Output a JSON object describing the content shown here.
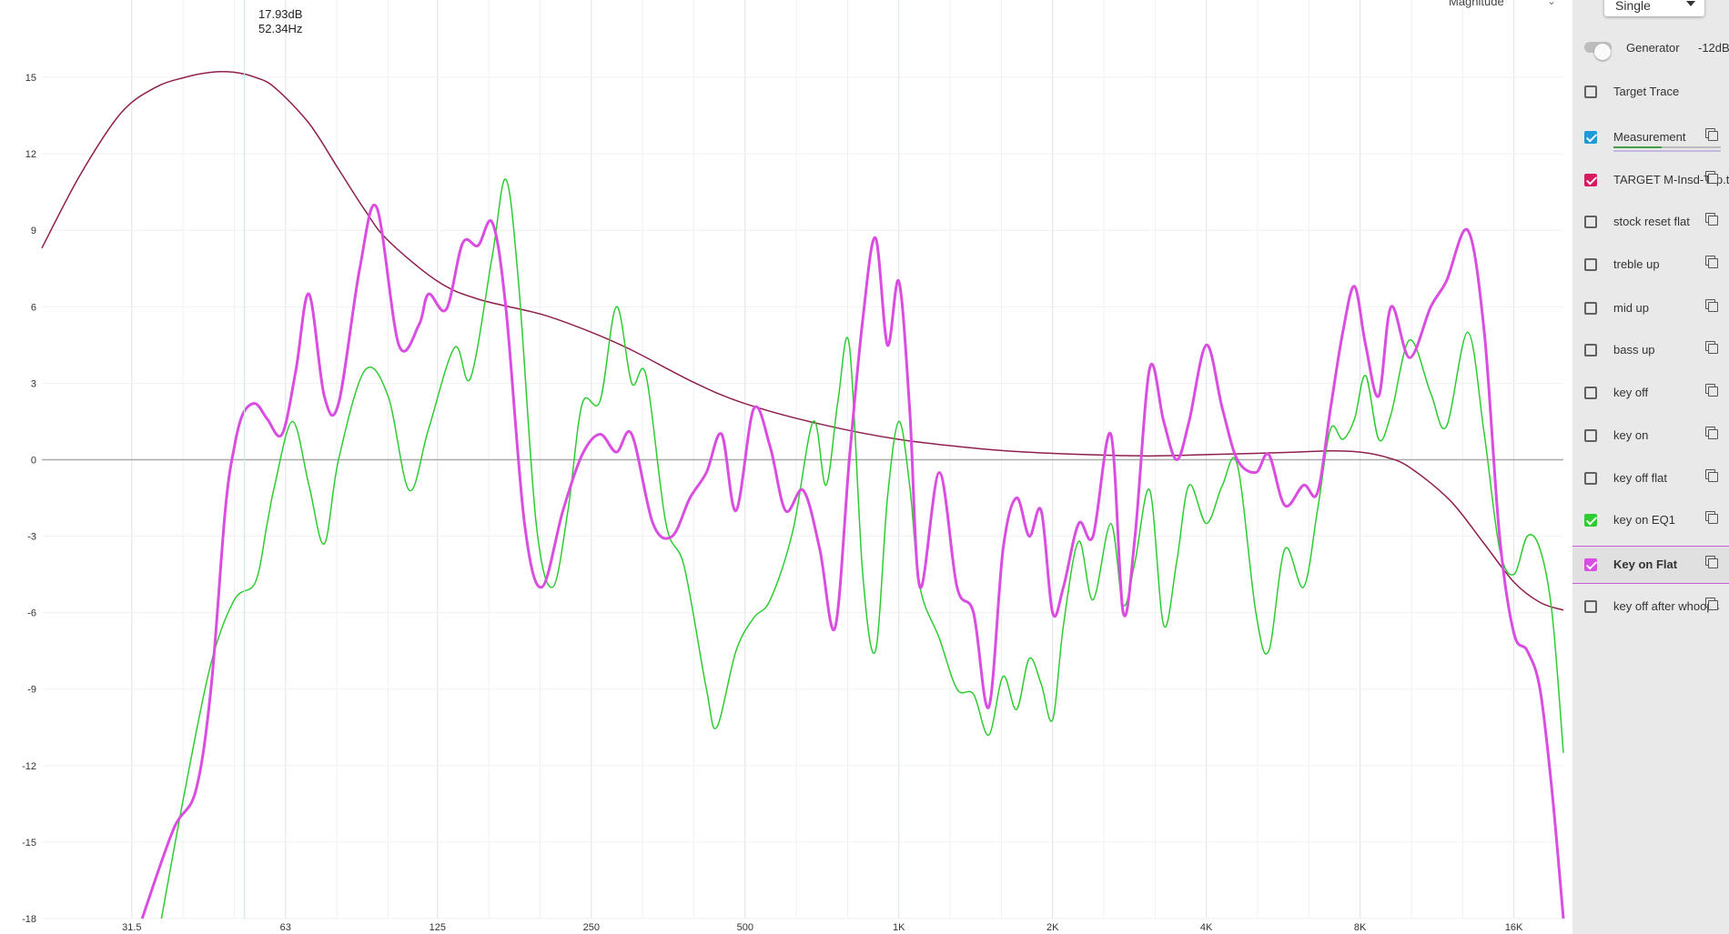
{
  "chart_data": {
    "type": "line",
    "x_scale": "log",
    "xlim": [
      21,
      20000
    ],
    "ylim": [
      -18,
      17
    ],
    "x_tick_labels": [
      {
        "freq": 31.5,
        "label": "31.5"
      },
      {
        "freq": 63,
        "label": "63"
      },
      {
        "freq": 125,
        "label": "125"
      },
      {
        "freq": 250,
        "label": "250"
      },
      {
        "freq": 500,
        "label": "500"
      },
      {
        "freq": 1000,
        "label": "1K"
      },
      {
        "freq": 2000,
        "label": "2K"
      },
      {
        "freq": 4000,
        "label": "4K"
      },
      {
        "freq": 8000,
        "label": "8K"
      },
      {
        "freq": 16000,
        "label": "16K"
      }
    ],
    "y_ticks": [
      15,
      12,
      9,
      6,
      3,
      0,
      -3,
      -6,
      -9,
      -12,
      -15,
      -18
    ],
    "grid": true,
    "cursor": {
      "freq": 52.34,
      "db": 17.93,
      "label_db": "17.93dB",
      "label_hz": "52.34Hz"
    },
    "series": [
      {
        "name": "TARGET M-Insd-Top.txt",
        "color": "#8e1f4f",
        "points": [
          [
            21,
            8.3
          ],
          [
            25,
            11.2
          ],
          [
            30,
            13.6
          ],
          [
            35,
            14.6
          ],
          [
            40,
            15.0
          ],
          [
            45,
            15.2
          ],
          [
            50,
            15.2
          ],
          [
            55,
            15.0
          ],
          [
            60,
            14.6
          ],
          [
            70,
            13.2
          ],
          [
            80,
            11.4
          ],
          [
            90,
            9.8
          ],
          [
            100,
            8.6
          ],
          [
            125,
            7.0
          ],
          [
            150,
            6.3
          ],
          [
            200,
            5.7
          ],
          [
            250,
            5.0
          ],
          [
            300,
            4.3
          ],
          [
            400,
            3.0
          ],
          [
            500,
            2.2
          ],
          [
            700,
            1.4
          ],
          [
            1000,
            0.8
          ],
          [
            1500,
            0.4
          ],
          [
            2000,
            0.25
          ],
          [
            3000,
            0.15
          ],
          [
            4000,
            0.2
          ],
          [
            5000,
            0.25
          ],
          [
            6000,
            0.3
          ],
          [
            7000,
            0.35
          ],
          [
            8000,
            0.3
          ],
          [
            9000,
            0.1
          ],
          [
            10000,
            -0.3
          ],
          [
            12000,
            -1.6
          ],
          [
            14000,
            -3.3
          ],
          [
            16000,
            -4.8
          ],
          [
            18000,
            -5.6
          ],
          [
            20000,
            -5.9
          ]
        ]
      },
      {
        "name": "key on EQ1",
        "color": "#2ecc32",
        "points": [
          [
            36,
            -18
          ],
          [
            40,
            -13
          ],
          [
            45,
            -8
          ],
          [
            50,
            -5.5
          ],
          [
            55,
            -4.8
          ],
          [
            58,
            -2.5
          ],
          [
            60,
            -1.0
          ],
          [
            65,
            1.5
          ],
          [
            70,
            -1.0
          ],
          [
            75,
            -3.3
          ],
          [
            80,
            0
          ],
          [
            90,
            3.5
          ],
          [
            100,
            2.5
          ],
          [
            110,
            -1.2
          ],
          [
            120,
            1.2
          ],
          [
            135,
            4.4
          ],
          [
            145,
            3.2
          ],
          [
            160,
            8.0
          ],
          [
            170,
            11.0
          ],
          [
            180,
            7.0
          ],
          [
            195,
            -2.5
          ],
          [
            210,
            -5.0
          ],
          [
            225,
            -2.0
          ],
          [
            240,
            2.2
          ],
          [
            260,
            2.3
          ],
          [
            280,
            6.0
          ],
          [
            300,
            3.0
          ],
          [
            320,
            3.3
          ],
          [
            350,
            -2.5
          ],
          [
            380,
            -4.2
          ],
          [
            420,
            -9.0
          ],
          [
            440,
            -10.5
          ],
          [
            480,
            -7.5
          ],
          [
            520,
            -6.2
          ],
          [
            560,
            -5.5
          ],
          [
            620,
            -2.8
          ],
          [
            680,
            1.5
          ],
          [
            720,
            -1.0
          ],
          [
            760,
            2.3
          ],
          [
            800,
            4.5
          ],
          [
            850,
            -4.5
          ],
          [
            900,
            -7.5
          ],
          [
            950,
            -1.5
          ],
          [
            1000,
            1.5
          ],
          [
            1050,
            -1.0
          ],
          [
            1100,
            -5.0
          ],
          [
            1200,
            -7.0
          ],
          [
            1300,
            -9.0
          ],
          [
            1400,
            -9.2
          ],
          [
            1500,
            -10.8
          ],
          [
            1600,
            -8.5
          ],
          [
            1700,
            -9.8
          ],
          [
            1800,
            -7.8
          ],
          [
            1900,
            -8.8
          ],
          [
            2000,
            -10.2
          ],
          [
            2100,
            -6.5
          ],
          [
            2250,
            -3.2
          ],
          [
            2400,
            -5.5
          ],
          [
            2600,
            -2.5
          ],
          [
            2750,
            -5.7
          ],
          [
            2900,
            -4.0
          ],
          [
            3100,
            -1.2
          ],
          [
            3300,
            -6.5
          ],
          [
            3500,
            -4.0
          ],
          [
            3700,
            -1.0
          ],
          [
            4000,
            -2.5
          ],
          [
            4300,
            -1.0
          ],
          [
            4600,
            -0.2
          ],
          [
            5000,
            -6.0
          ],
          [
            5300,
            -7.5
          ],
          [
            5700,
            -3.5
          ],
          [
            6200,
            -5.0
          ],
          [
            6600,
            -2.0
          ],
          [
            7000,
            1.2
          ],
          [
            7400,
            0.8
          ],
          [
            7800,
            1.6
          ],
          [
            8200,
            3.3
          ],
          [
            8700,
            0.8
          ],
          [
            9200,
            1.8
          ],
          [
            10000,
            4.7
          ],
          [
            11000,
            2.6
          ],
          [
            11800,
            1.3
          ],
          [
            13000,
            5.0
          ],
          [
            14000,
            1.0
          ],
          [
            15000,
            -3.5
          ],
          [
            16000,
            -4.5
          ],
          [
            17000,
            -3.0
          ],
          [
            18000,
            -3.5
          ],
          [
            19000,
            -6.0
          ],
          [
            20000,
            -11.5
          ]
        ]
      },
      {
        "name": "Key on Flat",
        "color": "#d94de0",
        "points": [
          [
            33,
            -18
          ],
          [
            38,
            -14.5
          ],
          [
            42,
            -13.0
          ],
          [
            45,
            -9.0
          ],
          [
            48,
            -2.0
          ],
          [
            50,
            0.5
          ],
          [
            52,
            1.8
          ],
          [
            55,
            2.2
          ],
          [
            58,
            1.6
          ],
          [
            62,
            1.0
          ],
          [
            66,
            3.5
          ],
          [
            70,
            6.5
          ],
          [
            75,
            2.5
          ],
          [
            80,
            2.2
          ],
          [
            88,
            7.5
          ],
          [
            95,
            9.9
          ],
          [
            105,
            4.5
          ],
          [
            115,
            5.3
          ],
          [
            120,
            6.5
          ],
          [
            130,
            5.9
          ],
          [
            140,
            8.5
          ],
          [
            150,
            8.4
          ],
          [
            160,
            9.3
          ],
          [
            170,
            6.0
          ],
          [
            185,
            -2.5
          ],
          [
            200,
            -5.0
          ],
          [
            220,
            -2.0
          ],
          [
            240,
            0.2
          ],
          [
            260,
            1.0
          ],
          [
            280,
            0.3
          ],
          [
            300,
            1.0
          ],
          [
            330,
            -2.5
          ],
          [
            360,
            -3.0
          ],
          [
            390,
            -1.5
          ],
          [
            420,
            -0.5
          ],
          [
            450,
            1.0
          ],
          [
            480,
            -2.0
          ],
          [
            520,
            2.0
          ],
          [
            560,
            0.5
          ],
          [
            600,
            -2.0
          ],
          [
            650,
            -1.2
          ],
          [
            700,
            -3.5
          ],
          [
            750,
            -6.6
          ],
          [
            800,
            0.0
          ],
          [
            850,
            5.5
          ],
          [
            900,
            8.7
          ],
          [
            950,
            4.5
          ],
          [
            1000,
            7.0
          ],
          [
            1050,
            2.0
          ],
          [
            1100,
            -5.0
          ],
          [
            1200,
            -0.5
          ],
          [
            1300,
            -5.0
          ],
          [
            1400,
            -6.0
          ],
          [
            1500,
            -9.7
          ],
          [
            1600,
            -3.5
          ],
          [
            1700,
            -1.5
          ],
          [
            1800,
            -3.0
          ],
          [
            1900,
            -2.0
          ],
          [
            2000,
            -6.0
          ],
          [
            2100,
            -5.0
          ],
          [
            2250,
            -2.5
          ],
          [
            2400,
            -3.0
          ],
          [
            2600,
            1.0
          ],
          [
            2750,
            -6.0
          ],
          [
            2900,
            -3.0
          ],
          [
            3100,
            3.6
          ],
          [
            3300,
            1.5
          ],
          [
            3500,
            0
          ],
          [
            3700,
            1.5
          ],
          [
            4000,
            4.5
          ],
          [
            4300,
            2.0
          ],
          [
            4600,
            0
          ],
          [
            5000,
            -0.5
          ],
          [
            5300,
            0.2
          ],
          [
            5700,
            -1.8
          ],
          [
            6200,
            -1.0
          ],
          [
            6600,
            -1.3
          ],
          [
            7000,
            2.0
          ],
          [
            7400,
            5.0
          ],
          [
            7800,
            6.8
          ],
          [
            8200,
            4.5
          ],
          [
            8700,
            2.5
          ],
          [
            9200,
            6.0
          ],
          [
            10000,
            4.0
          ],
          [
            11000,
            6.0
          ],
          [
            11800,
            7.0
          ],
          [
            13000,
            9.0
          ],
          [
            14000,
            5.0
          ],
          [
            15000,
            -3.0
          ],
          [
            16000,
            -6.8
          ],
          [
            17000,
            -7.5
          ],
          [
            18000,
            -9.0
          ],
          [
            19000,
            -13.0
          ],
          [
            20000,
            -18
          ]
        ]
      }
    ]
  },
  "header": {
    "magnitude_label": "Magnitude",
    "view_mode": "Single"
  },
  "generator": {
    "label": "Generator",
    "level": "-12dB",
    "on": false
  },
  "traces": [
    {
      "label": "Target Trace",
      "checked": false,
      "color": "",
      "bold": false,
      "copy": false
    },
    {
      "label": "Measurement",
      "checked": true,
      "color": "#1e9ad6",
      "bold": false,
      "copy": true,
      "level": 0.45
    },
    {
      "label": "TARGET M-Insd-Top.txt",
      "checked": true,
      "color": "#d81b60",
      "bold": false,
      "copy": true
    },
    {
      "label": "stock reset flat",
      "checked": false,
      "color": "",
      "bold": false,
      "copy": true
    },
    {
      "label": "treble up",
      "checked": false,
      "color": "",
      "bold": false,
      "copy": true
    },
    {
      "label": "mid up",
      "checked": false,
      "color": "",
      "bold": false,
      "copy": true
    },
    {
      "label": "bass up",
      "checked": false,
      "color": "",
      "bold": false,
      "copy": true
    },
    {
      "label": "key off",
      "checked": false,
      "color": "",
      "bold": false,
      "copy": true
    },
    {
      "label": "key on",
      "checked": false,
      "color": "",
      "bold": false,
      "copy": true
    },
    {
      "label": "key off flat",
      "checked": false,
      "color": "",
      "bold": false,
      "copy": true
    },
    {
      "label": "key on EQ1",
      "checked": true,
      "color": "#2ecc32",
      "bold": false,
      "copy": true
    },
    {
      "label": "Key on Flat",
      "checked": true,
      "color": "#d94de0",
      "bold": true,
      "copy": true,
      "selected": true
    },
    {
      "label": "key off after whoops",
      "checked": false,
      "color": "",
      "bold": false,
      "copy": true
    }
  ]
}
